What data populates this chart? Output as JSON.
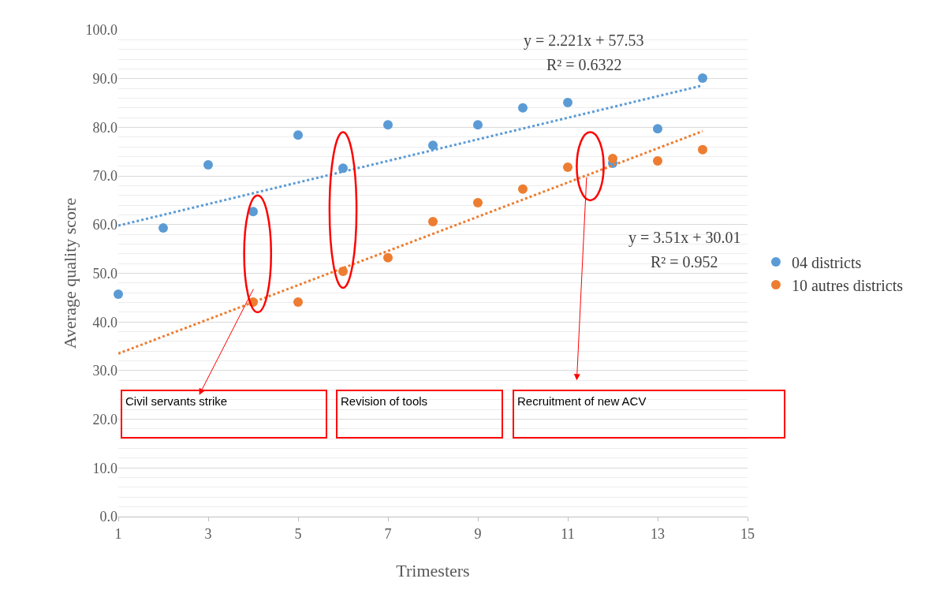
{
  "chart_data": {
    "type": "scatter",
    "xlabel": "Trimesters",
    "ylabel": "Average quality score",
    "xlim": [
      1,
      15
    ],
    "xticks": [
      1,
      3,
      5,
      7,
      9,
      11,
      13,
      15
    ],
    "ylim": [
      0,
      100
    ],
    "yticks": [
      {
        "value": 0,
        "label": "0.0"
      },
      {
        "value": 10,
        "label": "10.0"
      },
      {
        "value": 20,
        "label": "20.0"
      },
      {
        "value": 30,
        "label": "30.0"
      },
      {
        "value": 40,
        "label": "40.0"
      },
      {
        "value": 50,
        "label": "50.0"
      },
      {
        "value": 60,
        "label": "60.0"
      },
      {
        "value": 70,
        "label": "70.0"
      },
      {
        "value": 80,
        "label": "80.0"
      },
      {
        "value": 90,
        "label": "90.0"
      },
      {
        "value": 100,
        "label": "100.0"
      }
    ],
    "grid": "y",
    "legend": "right",
    "series": [
      {
        "name": "04 districts",
        "marker": "circle",
        "color": "#5b9bd5",
        "x": [
          1,
          2,
          3,
          4,
          5,
          6,
          7,
          8,
          9,
          10,
          11,
          12,
          13,
          14
        ],
        "values": [
          45.7,
          59.3,
          72.3,
          62.7,
          78.4,
          71.6,
          80.5,
          76.3,
          80.5,
          84.0,
          85.1,
          72.6,
          79.7,
          90.1
        ]
      },
      {
        "name": "10 autres districts",
        "marker": "circle",
        "color": "#ed7d31",
        "x": [
          4,
          5,
          6,
          7,
          8,
          9,
          10,
          11,
          12,
          13,
          14
        ],
        "values": [
          44.1,
          44.1,
          50.4,
          53.2,
          60.6,
          64.5,
          67.3,
          71.8,
          73.6,
          73.1,
          75.4
        ]
      },
      {
        "type": "line",
        "line_style": "dotted",
        "color": "#5b9bd5",
        "x": [
          1,
          14
        ],
        "values": [
          59.8,
          88.6
        ]
      },
      {
        "type": "line",
        "line_style": "dotted",
        "color": "#ed7d31",
        "x": [
          1,
          14
        ],
        "values": [
          33.5,
          79.2
        ]
      }
    ],
    "annotations": [
      "y = 2.221x + 57.53",
      "R² = 0.6322",
      "y = 3.51x + 30.01",
      "R² = 0.952",
      "Civil servants strike",
      "Revision of tools",
      "Recruitment of new ACV"
    ]
  }
}
